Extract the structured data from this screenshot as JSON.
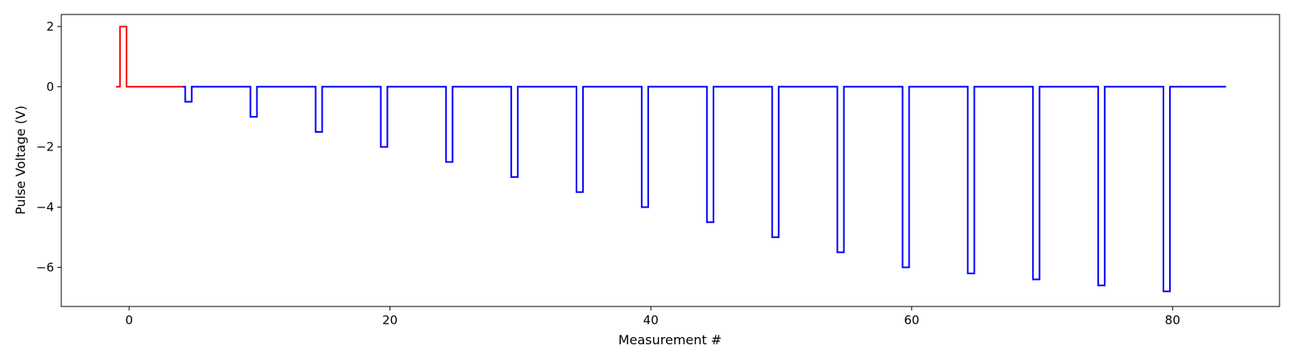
{
  "chart_data": {
    "type": "line",
    "title": "",
    "xlabel": "Measurement #",
    "ylabel": "Pulse Voltage (V)",
    "xlim": [
      -5.2,
      88.2
    ],
    "ylim": [
      -7.3,
      2.4
    ],
    "x_ticks": [
      0,
      20,
      40,
      60,
      80
    ],
    "y_ticks": [
      2,
      0,
      -2,
      -4,
      -6
    ],
    "x_tick_labels": [
      "0",
      "20",
      "40",
      "60",
      "80"
    ],
    "y_tick_labels": [
      "2",
      "0",
      "−2",
      "−4",
      "−6"
    ],
    "grid": false,
    "legend": "none",
    "series": [
      {
        "color": "#ff0000",
        "step": "post",
        "points": [
          [
            -1,
            0
          ],
          [
            -0.7,
            2
          ],
          [
            -0.2,
            0
          ],
          [
            4.1,
            0
          ]
        ]
      },
      {
        "color": "#0000ff",
        "step": "post",
        "pulse_width": 0.5,
        "baseline": 0,
        "start_x": 4.1,
        "end_x": 84.1,
        "pulses": [
          {
            "x": 4.3,
            "v": -0.5
          },
          {
            "x": 9.3,
            "v": -1.0
          },
          {
            "x": 14.3,
            "v": -1.5
          },
          {
            "x": 19.3,
            "v": -2.0
          },
          {
            "x": 24.3,
            "v": -2.5
          },
          {
            "x": 29.3,
            "v": -3.0
          },
          {
            "x": 34.3,
            "v": -3.5
          },
          {
            "x": 39.3,
            "v": -4.0
          },
          {
            "x": 44.3,
            "v": -4.5
          },
          {
            "x": 49.3,
            "v": -5.0
          },
          {
            "x": 54.3,
            "v": -5.5
          },
          {
            "x": 59.3,
            "v": -6.0
          },
          {
            "x": 64.3,
            "v": -6.2
          },
          {
            "x": 69.3,
            "v": -6.4
          },
          {
            "x": 74.3,
            "v": -6.6
          },
          {
            "x": 79.3,
            "v": -6.8
          }
        ]
      }
    ]
  }
}
